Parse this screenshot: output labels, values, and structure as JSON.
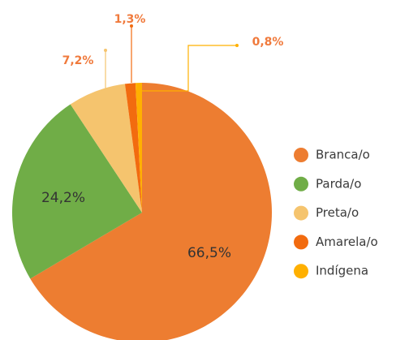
{
  "chart_data": {
    "type": "pie",
    "categories": [
      "Branca/o",
      "Parda/o",
      "Preta/o",
      "Amarela/o",
      "Indígena"
    ],
    "values": [
      66.5,
      24.2,
      7.2,
      1.3,
      0.8
    ],
    "value_labels": [
      "66,5%",
      "24,2%",
      "7,2%",
      "1,3%",
      "0,8%"
    ],
    "colors": [
      "#ed7d31",
      "#70ad47",
      "#f5c46e",
      "#f26b0f",
      "#ffb000"
    ],
    "legend": "right"
  }
}
